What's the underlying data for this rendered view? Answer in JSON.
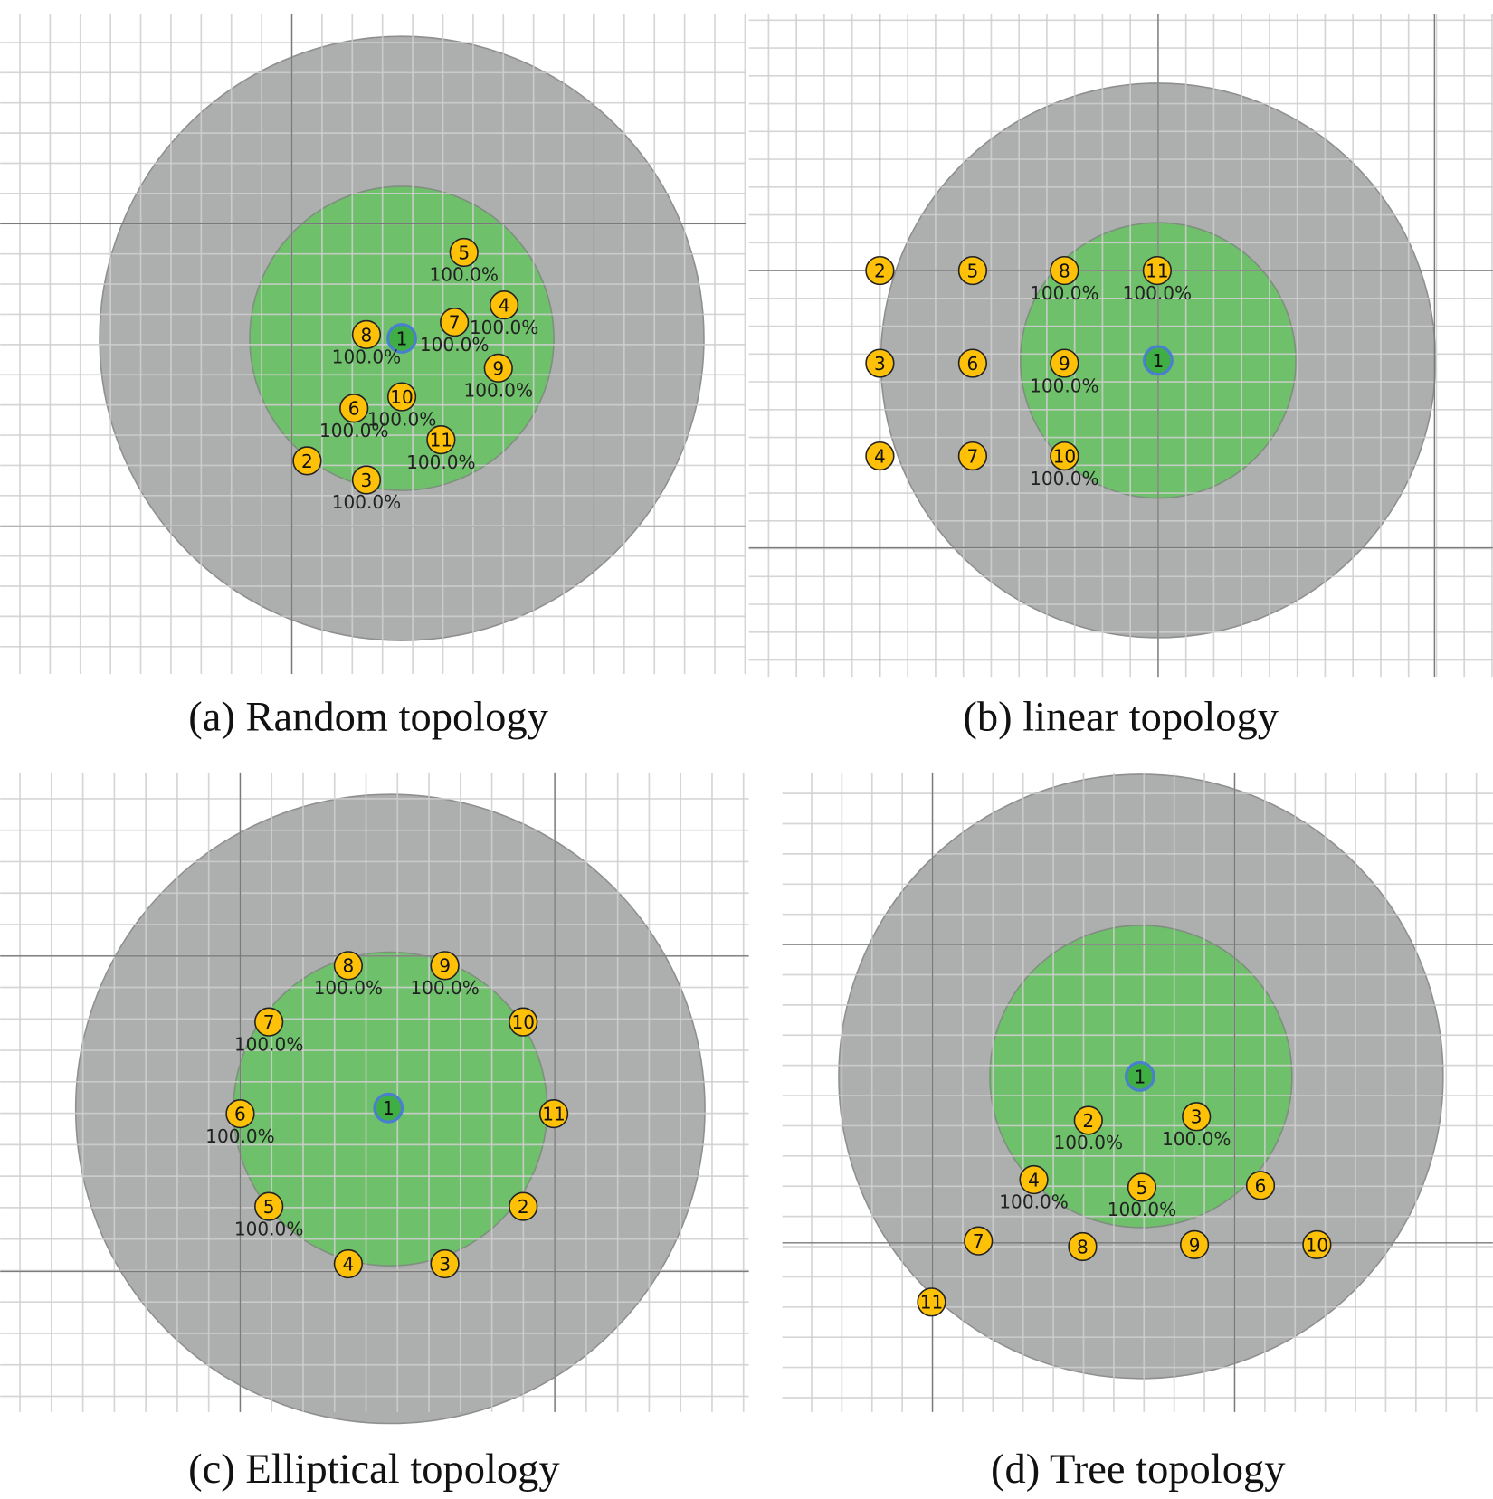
{
  "colors": {
    "outer_range": "#adaeae",
    "inner_range": "#6fc06a",
    "node_fill": "#ffc107",
    "sink_fill": "#3fae45",
    "sink_ring": "#4a7fd0",
    "grid_minor": "#cfcfcf",
    "grid_major": "#7a7a7a"
  },
  "panels": [
    {
      "caption": "(a) Random topology",
      "nodes": [
        {
          "id": "1",
          "label": ""
        },
        {
          "id": "2",
          "label": ""
        },
        {
          "id": "3",
          "label": "100.0%"
        },
        {
          "id": "4",
          "label": "100.0%"
        },
        {
          "id": "5",
          "label": "100.0%"
        },
        {
          "id": "6",
          "label": "100.0%"
        },
        {
          "id": "7",
          "label": "100.0%"
        },
        {
          "id": "8",
          "label": "100.0%"
        },
        {
          "id": "9",
          "label": "100.0%"
        },
        {
          "id": "10",
          "label": "100.0%"
        },
        {
          "id": "11",
          "label": "100.0%"
        }
      ]
    },
    {
      "caption": "(b) linear topology",
      "nodes": [
        {
          "id": "1",
          "label": ""
        },
        {
          "id": "2",
          "label": ""
        },
        {
          "id": "3",
          "label": ""
        },
        {
          "id": "4",
          "label": ""
        },
        {
          "id": "5",
          "label": ""
        },
        {
          "id": "6",
          "label": ""
        },
        {
          "id": "7",
          "label": ""
        },
        {
          "id": "8",
          "label": "100.0%"
        },
        {
          "id": "9",
          "label": "100.0%"
        },
        {
          "id": "10",
          "label": "100.0%"
        },
        {
          "id": "11",
          "label": "100.0%"
        }
      ]
    },
    {
      "caption": "(c) Elliptical topology",
      "nodes": [
        {
          "id": "1",
          "label": ""
        },
        {
          "id": "2",
          "label": ""
        },
        {
          "id": "3",
          "label": ""
        },
        {
          "id": "4",
          "label": ""
        },
        {
          "id": "5",
          "label": "100.0%"
        },
        {
          "id": "6",
          "label": "100.0%"
        },
        {
          "id": "7",
          "label": "100.0%"
        },
        {
          "id": "8",
          "label": "100.0%"
        },
        {
          "id": "9",
          "label": "100.0%"
        },
        {
          "id": "10",
          "label": ""
        },
        {
          "id": "11",
          "label": ""
        }
      ]
    },
    {
      "caption": "(d) Tree topology",
      "nodes": [
        {
          "id": "1",
          "label": ""
        },
        {
          "id": "2",
          "label": "100.0%"
        },
        {
          "id": "3",
          "label": "100.0%"
        },
        {
          "id": "4",
          "label": "100.0%"
        },
        {
          "id": "5",
          "label": "100.0%"
        },
        {
          "id": "6",
          "label": ""
        },
        {
          "id": "7",
          "label": ""
        },
        {
          "id": "8",
          "label": ""
        },
        {
          "id": "9",
          "label": ""
        },
        {
          "id": "10",
          "label": ""
        },
        {
          "id": "11",
          "label": ""
        }
      ]
    }
  ]
}
